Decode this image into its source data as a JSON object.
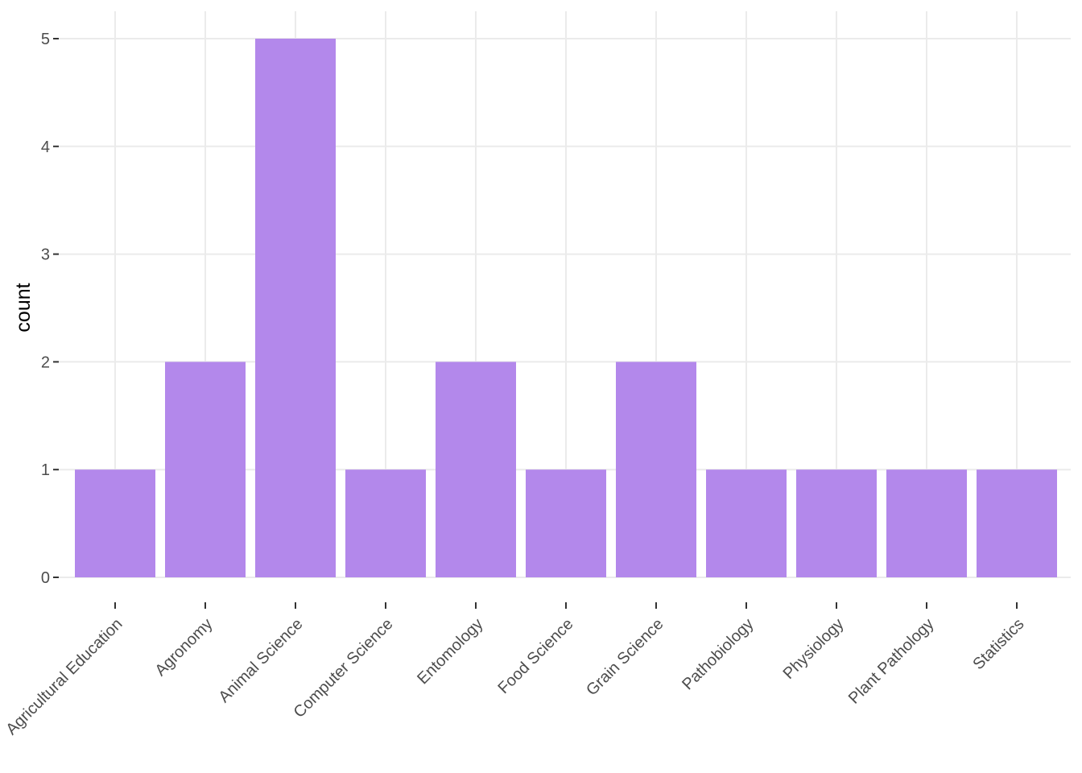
{
  "chart_data": {
    "type": "bar",
    "categories": [
      "Agricultural Education",
      "Agronomy",
      "Animal Science",
      "Computer Science",
      "Entomology",
      "Food Science",
      "Grain Science",
      "Pathobiology",
      "Physiology",
      "Plant Pathology",
      "Statistics"
    ],
    "values": [
      1,
      2,
      5,
      1,
      2,
      1,
      2,
      1,
      1,
      1,
      1
    ],
    "title": "",
    "xlabel": "",
    "ylabel": "count",
    "ylim": [
      0,
      5
    ],
    "yticks": [
      0,
      1,
      2,
      3,
      4,
      5
    ],
    "bar_color": "#b388eb",
    "grid": true
  }
}
